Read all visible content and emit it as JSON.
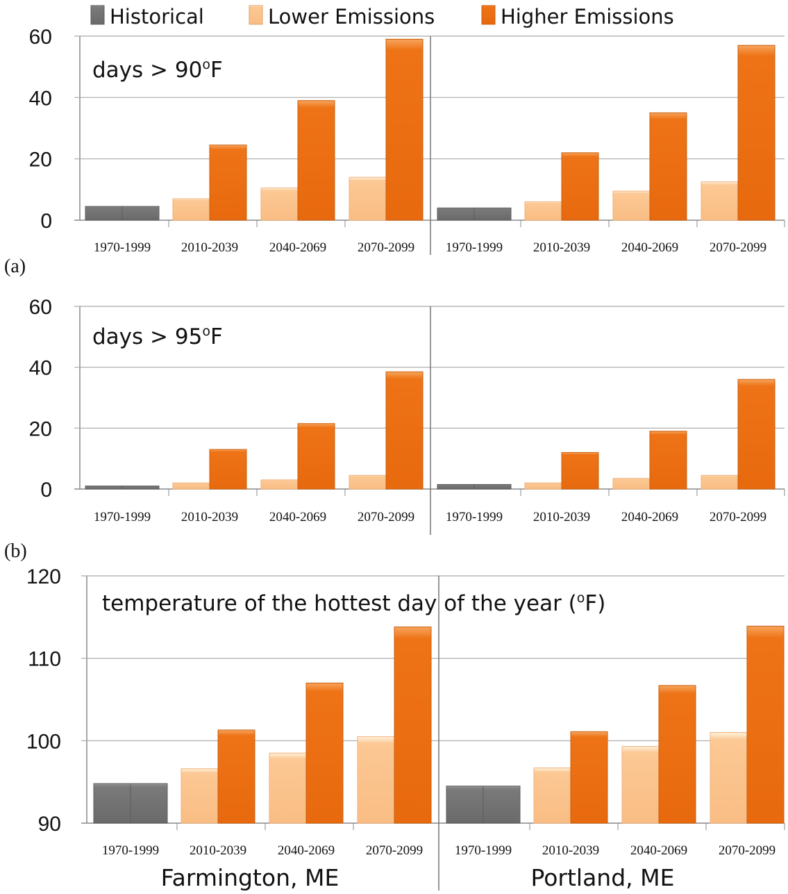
{
  "legend": [
    {
      "label": "Historical",
      "color": "#7a7a7a"
    },
    {
      "label": "Lower Emissions",
      "color": "#fbc896"
    },
    {
      "label": "Higher Emissions",
      "color": "#ee7316"
    }
  ],
  "stations": [
    "Farmington, ME",
    "Portland, ME"
  ],
  "chart_data": [
    {
      "type": "bar",
      "panel_label": "(a)",
      "title_pre": "days > 90",
      "title_sup": "o",
      "title_post": "F",
      "ylim": [
        0,
        60
      ],
      "yticks": [
        0,
        20,
        40,
        60
      ],
      "categories": [
        "1970-1999",
        "2010-2039",
        "2040-2069",
        "2070-2099"
      ],
      "groups": [
        {
          "station": "Farmington, ME",
          "historical": 4.5,
          "lower": [
            7,
            10.5,
            14
          ],
          "higher": [
            24.5,
            39,
            59
          ]
        },
        {
          "station": "Portland, ME",
          "historical": 4,
          "lower": [
            6,
            9.5,
            12.5
          ],
          "higher": [
            22,
            35,
            57
          ]
        }
      ]
    },
    {
      "type": "bar",
      "panel_label": "(b)",
      "title_pre": "days > 95",
      "title_sup": "o",
      "title_post": "F",
      "ylim": [
        0,
        60
      ],
      "yticks": [
        0,
        20,
        40,
        60
      ],
      "categories": [
        "1970-1999",
        "2010-2039",
        "2040-2069",
        "2070-2099"
      ],
      "groups": [
        {
          "station": "Farmington, ME",
          "historical": 1,
          "lower": [
            2,
            3,
            4.5
          ],
          "higher": [
            13,
            21.5,
            38.5
          ]
        },
        {
          "station": "Portland, ME",
          "historical": 1.5,
          "lower": [
            2,
            3.5,
            4.5
          ],
          "higher": [
            12,
            19,
            36
          ]
        }
      ]
    },
    {
      "type": "bar",
      "panel_label": "",
      "title_pre": "temperature of the hottest day of the year (",
      "title_sup": "o",
      "title_post": "F)",
      "ylim": [
        90,
        120
      ],
      "yticks": [
        90,
        100,
        110,
        120
      ],
      "categories": [
        "1970-1999",
        "2010-2039",
        "2040-2069",
        "2070-2099"
      ],
      "groups": [
        {
          "station": "Farmington, ME",
          "historical": 94.8,
          "lower": [
            96.6,
            98.5,
            100.5
          ],
          "higher": [
            101.3,
            107,
            113.8
          ]
        },
        {
          "station": "Portland, ME",
          "historical": 94.5,
          "lower": [
            96.7,
            99.3,
            101
          ],
          "higher": [
            101.1,
            106.7,
            113.9
          ]
        }
      ]
    }
  ]
}
